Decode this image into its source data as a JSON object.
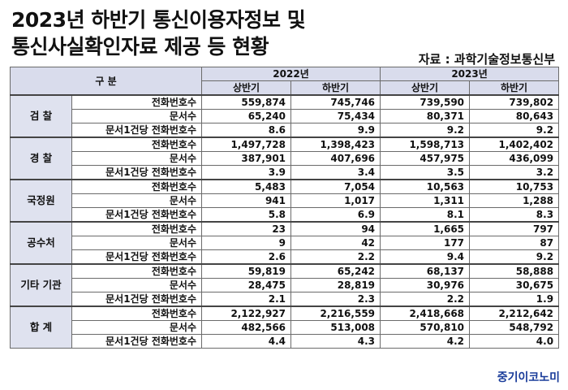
{
  "title_lines": [
    "2023년 하반기 통신이용자정보 및",
    "통신사실확인자료 제공 등 현황"
  ],
  "source": "자료 : 과학기술정보통신부",
  "table": {
    "gubun": "구 분",
    "years": [
      "2022년",
      "2023년"
    ],
    "halves": [
      "상반기",
      "하반기",
      "상반기",
      "하반기"
    ],
    "groups": [
      {
        "name": "검 찰",
        "rows": [
          {
            "label": "전화번호수",
            "values": [
              "559,874",
              "745,746",
              "739,590",
              "739,802"
            ]
          },
          {
            "label": "문서수",
            "values": [
              "65,240",
              "75,434",
              "80,371",
              "80,643"
            ]
          },
          {
            "label": "문서1건당 전화번호수",
            "values": [
              "8.6",
              "9.9",
              "9.2",
              "9.2"
            ]
          }
        ]
      },
      {
        "name": "경 찰",
        "rows": [
          {
            "label": "전화번호수",
            "values": [
              "1,497,728",
              "1,398,423",
              "1,598,713",
              "1,402,402"
            ]
          },
          {
            "label": "문서수",
            "values": [
              "387,901",
              "407,696",
              "457,975",
              "436,099"
            ]
          },
          {
            "label": "문서1건당 전화번호수",
            "values": [
              "3.9",
              "3.4",
              "3.5",
              "3.2"
            ]
          }
        ]
      },
      {
        "name": "국정원",
        "rows": [
          {
            "label": "전화번호수",
            "values": [
              "5,483",
              "7,054",
              "10,563",
              "10,753"
            ]
          },
          {
            "label": "문서수",
            "values": [
              "941",
              "1,017",
              "1,311",
              "1,288"
            ]
          },
          {
            "label": "문서1건당 전화번호수",
            "values": [
              "5.8",
              "6.9",
              "8.1",
              "8.3"
            ]
          }
        ]
      },
      {
        "name": "공수처",
        "rows": [
          {
            "label": "전화번호수",
            "values": [
              "23",
              "94",
              "1,665",
              "797"
            ]
          },
          {
            "label": "문서수",
            "values": [
              "9",
              "42",
              "177",
              "87"
            ]
          },
          {
            "label": "문서1건당 전화번호수",
            "values": [
              "2.6",
              "2.2",
              "9.4",
              "9.2"
            ]
          }
        ]
      },
      {
        "name": "기타 기관",
        "rows": [
          {
            "label": "전화번호수",
            "values": [
              "59,819",
              "65,242",
              "68,137",
              "58,888"
            ]
          },
          {
            "label": "문서수",
            "values": [
              "28,475",
              "28,819",
              "30,976",
              "30,675"
            ]
          },
          {
            "label": "문서1건당 전화번호수",
            "values": [
              "2.1",
              "2.3",
              "2.2",
              "1.9"
            ]
          }
        ]
      },
      {
        "name": "합 계",
        "rows": [
          {
            "label": "전화번호수",
            "values": [
              "2,122,927",
              "2,216,559",
              "2,418,668",
              "2,212,642"
            ]
          },
          {
            "label": "문서수",
            "values": [
              "482,566",
              "513,008",
              "570,810",
              "548,792"
            ]
          },
          {
            "label": "문서1건당 전화번호수",
            "values": [
              "4.4",
              "4.3",
              "4.2",
              "4.0"
            ]
          }
        ]
      }
    ]
  },
  "watermark": "중기이코노미"
}
